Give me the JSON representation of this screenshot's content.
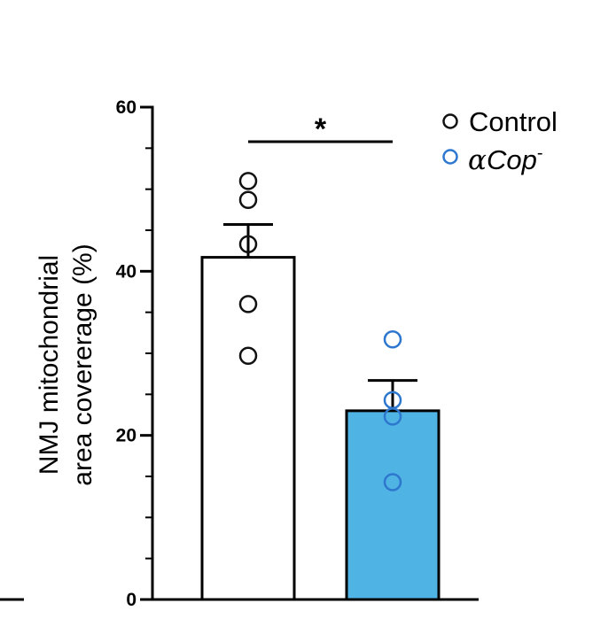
{
  "chart_data": {
    "type": "bar",
    "categories": [
      "Control",
      "αCop-"
    ],
    "ylabel_line1": "NMJ mitochondrial",
    "ylabel_line2": "area covererage (%)",
    "ylim": [
      0,
      60
    ],
    "yticks": [
      "0",
      "20",
      "40",
      "60"
    ],
    "yticks_values": [
      0,
      20,
      40,
      60
    ],
    "minor_tick_step": 5,
    "series": [
      {
        "name": "Control",
        "mean": 41.7,
        "sem": 4.0,
        "points": [
          51.0,
          48.7,
          43.3,
          36.0,
          29.7
        ],
        "bar_color": "#ffffff",
        "point_color": "#111111"
      },
      {
        "name": "αCop-",
        "mean": 23.0,
        "sem": 3.7,
        "points": [
          31.7,
          24.3,
          22.3,
          14.3
        ],
        "bar_color": "#4fb3e3",
        "point_color": "#2e77cf"
      }
    ],
    "significance": {
      "label": "*",
      "from": 0,
      "to": 1
    },
    "legend": {
      "position": "top-right",
      "entries": [
        {
          "prefix": "",
          "text": "Control",
          "suffix": ""
        },
        {
          "prefix": "α",
          "text": "Cop",
          "suffix": "-"
        }
      ]
    }
  }
}
